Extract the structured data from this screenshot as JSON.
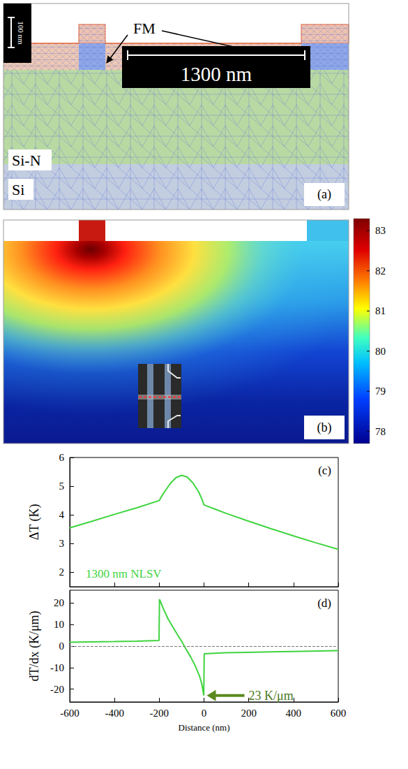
{
  "panel_a": {
    "letter": "(a)",
    "fm_label": "FM",
    "layer_labels": [
      "Si-N",
      "Si"
    ],
    "vertical_scale_bar": "100 nm",
    "horizontal_scale_bar": "1300 nm"
  },
  "panel_b": {
    "letter": "(b)",
    "colorbar": {
      "range": [
        77.7,
        83.3
      ],
      "ticks": [
        78,
        79,
        80,
        81,
        82,
        83
      ]
    }
  },
  "chart_data": [
    {
      "type": "line",
      "panel": "(c)",
      "ylabel": "ΔT (K)",
      "x": [
        -600,
        -500,
        -400,
        -300,
        -200,
        -190,
        -175,
        -150,
        -125,
        -100,
        -75,
        -50,
        -25,
        -10,
        0,
        50,
        100,
        200,
        300,
        400,
        500,
        600
      ],
      "series": [
        {
          "name": "1300 nm NLSV",
          "color": "#3fd43f",
          "values": [
            3.55,
            3.78,
            4.02,
            4.25,
            4.5,
            4.64,
            4.82,
            5.1,
            5.3,
            5.38,
            5.32,
            5.12,
            4.82,
            4.56,
            4.35,
            4.2,
            4.05,
            3.78,
            3.52,
            3.27,
            3.03,
            2.8
          ]
        }
      ],
      "xlim": [
        -600,
        600
      ],
      "xticks": [
        -600,
        -400,
        -200,
        0,
        200,
        400,
        600
      ],
      "ylim": [
        1.5,
        6
      ],
      "yticks": [
        2,
        3,
        4,
        5,
        6
      ],
      "legend": "lower left",
      "tick_labels": "y"
    },
    {
      "type": "line",
      "panel": "(d)",
      "xlabel": "Distance (nm)",
      "ylabel": "dT/dx (K/μm)",
      "x": [
        -600,
        -400,
        -300,
        -201,
        -199,
        -180,
        -160,
        -140,
        -120,
        -100,
        -80,
        -60,
        -40,
        -20,
        -10,
        -1,
        1,
        50,
        100,
        200,
        300,
        400,
        600
      ],
      "series": [
        {
          "color": "#3fd43f",
          "values": [
            1.8,
            2.1,
            2.3,
            2.6,
            21.8,
            17,
            12.5,
            9,
            5.5,
            2.3,
            -1.5,
            -5,
            -9,
            -14,
            -17.5,
            -23,
            -3.6,
            -3.3,
            -3.1,
            -2.9,
            -2.7,
            -2.5,
            -2.1
          ]
        }
      ],
      "xlim": [
        -600,
        600
      ],
      "xticks": [
        -600,
        -400,
        -200,
        0,
        200,
        400,
        600
      ],
      "ylim": [
        -26,
        26
      ],
      "yticks": [
        -20,
        -10,
        0,
        10,
        20
      ],
      "reference_y": 0,
      "annotation": {
        "text": "23 K/μm",
        "x": 0,
        "y": -23
      }
    }
  ]
}
